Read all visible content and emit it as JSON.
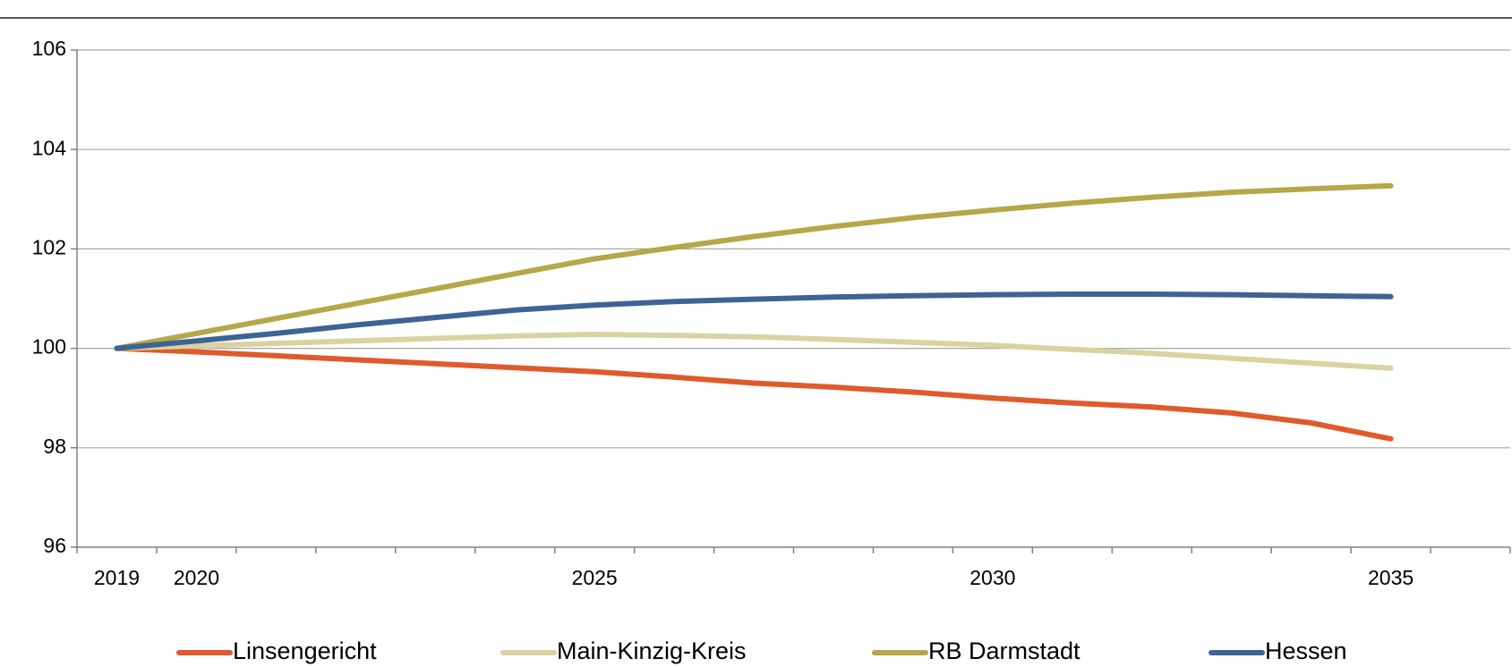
{
  "chart_data": {
    "type": "line",
    "categories": [
      "2019",
      "2020",
      null,
      null,
      null,
      null,
      "2025",
      null,
      null,
      null,
      null,
      "2030",
      null,
      null,
      null,
      null,
      "2035",
      null
    ],
    "series": [
      {
        "name": "Linsengericht",
        "color": "#e05a2b",
        "values": [
          100,
          99.93,
          99.85,
          99.77,
          99.69,
          99.61,
          99.53,
          99.42,
          99.3,
          99.22,
          99.12,
          99.0,
          98.9,
          98.82,
          98.7,
          98.5,
          98.18,
          null
        ]
      },
      {
        "name": "Main-Kinzig-Kreis",
        "color": "#d9d3a1",
        "values": [
          100,
          100.05,
          100.1,
          100.15,
          100.2,
          100.25,
          100.28,
          100.26,
          100.23,
          100.18,
          100.12,
          100.06,
          99.98,
          99.9,
          99.8,
          99.7,
          99.6,
          null
        ]
      },
      {
        "name": "RB Darmstadt",
        "color": "#b5a84a",
        "values": [
          100,
          100.3,
          100.6,
          100.9,
          101.2,
          101.5,
          101.8,
          102.03,
          102.25,
          102.45,
          102.63,
          102.78,
          102.92,
          103.04,
          103.14,
          103.21,
          103.27,
          null
        ]
      },
      {
        "name": "Hessen",
        "color": "#3d6494",
        "values": [
          100,
          100.15,
          100.3,
          100.47,
          100.62,
          100.77,
          100.87,
          100.94,
          100.99,
          101.03,
          101.06,
          101.08,
          101.09,
          101.09,
          101.08,
          101.06,
          101.04,
          null
        ]
      }
    ],
    "ylim": [
      96,
      106
    ],
    "yticks": [
      96,
      98,
      100,
      102,
      104,
      106
    ],
    "grid": true,
    "legend": "bottom"
  }
}
